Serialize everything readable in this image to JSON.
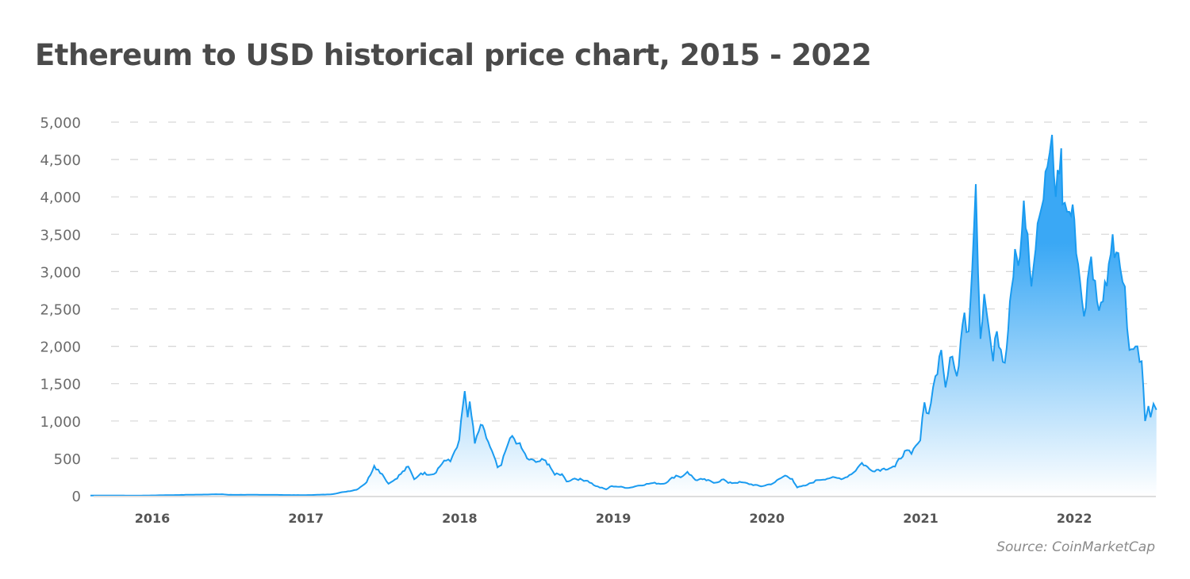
{
  "chart_data": {
    "type": "area",
    "title": "Ethereum to USD historical price chart, 2015 - 2022",
    "source": "Source: CoinMarketCap",
    "xlabel": "",
    "ylabel": "",
    "ylim": [
      0,
      5000
    ],
    "xlim": [
      "2015-08-07",
      "2022-07-15"
    ],
    "grid": "horizontal dashed",
    "colors": {
      "line": "#1a9bf0",
      "fill_top": "#3aa8f5",
      "fill_bottom": "#ffffff"
    },
    "y_ticks": [
      "0",
      "500",
      "1,000",
      "1,500",
      "2,000",
      "2,500",
      "3,000",
      "3,500",
      "4,000",
      "4,500",
      "5,000"
    ],
    "x_ticks": [
      "2016",
      "2017",
      "2018",
      "2019",
      "2020",
      "2021",
      "2022"
    ],
    "series": [
      {
        "points": [
          [
            "2015-08-07",
            3
          ],
          [
            "2015-12-01",
            1
          ],
          [
            "2016-03-01",
            10
          ],
          [
            "2016-06-15",
            20
          ],
          [
            "2016-07-01",
            12
          ],
          [
            "2016-10-01",
            12
          ],
          [
            "2017-01-01",
            8
          ],
          [
            "2017-03-01",
            18
          ],
          [
            "2017-04-01",
            50
          ],
          [
            "2017-05-01",
            80
          ],
          [
            "2017-05-25",
            180
          ],
          [
            "2017-06-12",
            400
          ],
          [
            "2017-07-01",
            290
          ],
          [
            "2017-07-16",
            160
          ],
          [
            "2017-08-01",
            220
          ],
          [
            "2017-09-01",
            390
          ],
          [
            "2017-09-15",
            220
          ],
          [
            "2017-10-01",
            300
          ],
          [
            "2017-11-01",
            290
          ],
          [
            "2017-11-25",
            470
          ],
          [
            "2017-12-10",
            460
          ],
          [
            "2017-12-31",
            750
          ],
          [
            "2018-01-13",
            1400
          ],
          [
            "2018-01-20",
            1050
          ],
          [
            "2018-01-25",
            1260
          ],
          [
            "2018-02-06",
            700
          ],
          [
            "2018-02-20",
            950
          ],
          [
            "2018-03-10",
            720
          ],
          [
            "2018-04-01",
            380
          ],
          [
            "2018-04-10",
            410
          ],
          [
            "2018-04-25",
            680
          ],
          [
            "2018-05-06",
            800
          ],
          [
            "2018-05-20",
            700
          ],
          [
            "2018-06-01",
            600
          ],
          [
            "2018-06-10",
            500
          ],
          [
            "2018-07-01",
            450
          ],
          [
            "2018-07-20",
            480
          ],
          [
            "2018-08-01",
            420
          ],
          [
            "2018-08-15",
            280
          ],
          [
            "2018-09-01",
            290
          ],
          [
            "2018-09-12",
            190
          ],
          [
            "2018-10-01",
            230
          ],
          [
            "2018-11-01",
            200
          ],
          [
            "2018-11-20",
            130
          ],
          [
            "2018-12-15",
            85
          ],
          [
            "2018-12-28",
            130
          ],
          [
            "2019-01-15",
            120
          ],
          [
            "2019-02-07",
            105
          ],
          [
            "2019-03-01",
            135
          ],
          [
            "2019-04-05",
            170
          ],
          [
            "2019-05-01",
            160
          ],
          [
            "2019-05-30",
            270
          ],
          [
            "2019-06-10",
            245
          ],
          [
            "2019-06-26",
            320
          ],
          [
            "2019-07-15",
            210
          ],
          [
            "2019-08-01",
            220
          ],
          [
            "2019-09-01",
            175
          ],
          [
            "2019-09-20",
            220
          ],
          [
            "2019-10-01",
            170
          ],
          [
            "2019-11-01",
            180
          ],
          [
            "2019-12-18",
            125
          ],
          [
            "2020-01-15",
            165
          ],
          [
            "2020-02-13",
            270
          ],
          [
            "2020-03-01",
            225
          ],
          [
            "2020-03-13",
            110
          ],
          [
            "2020-04-01",
            135
          ],
          [
            "2020-05-01",
            210
          ],
          [
            "2020-06-01",
            240
          ],
          [
            "2020-07-01",
            230
          ],
          [
            "2020-07-25",
            310
          ],
          [
            "2020-08-14",
            440
          ],
          [
            "2020-09-05",
            340
          ],
          [
            "2020-10-01",
            355
          ],
          [
            "2020-11-01",
            390
          ],
          [
            "2020-11-24",
            600
          ],
          [
            "2020-12-10",
            560
          ],
          [
            "2020-12-31",
            740
          ],
          [
            "2021-01-10",
            1250
          ],
          [
            "2021-01-20",
            1100
          ],
          [
            "2021-02-05",
            1600
          ],
          [
            "2021-02-19",
            1950
          ],
          [
            "2021-03-01",
            1450
          ],
          [
            "2021-03-12",
            1850
          ],
          [
            "2021-03-28",
            1600
          ],
          [
            "2021-04-15",
            2450
          ],
          [
            "2021-04-25",
            2200
          ],
          [
            "2021-05-12",
            4170
          ],
          [
            "2021-05-23",
            2100
          ],
          [
            "2021-06-01",
            2700
          ],
          [
            "2021-06-22",
            1800
          ],
          [
            "2021-07-01",
            2200
          ],
          [
            "2021-07-20",
            1780
          ],
          [
            "2021-08-01",
            2600
          ],
          [
            "2021-08-13",
            3300
          ],
          [
            "2021-08-25",
            3200
          ],
          [
            "2021-09-03",
            3950
          ],
          [
            "2021-09-21",
            2800
          ],
          [
            "2021-10-01",
            3300
          ],
          [
            "2021-10-15",
            3850
          ],
          [
            "2021-10-29",
            4400
          ],
          [
            "2021-11-09",
            4830
          ],
          [
            "2021-11-18",
            4000
          ],
          [
            "2021-12-01",
            4650
          ],
          [
            "2021-12-04",
            3900
          ],
          [
            "2021-12-20",
            3800
          ],
          [
            "2022-01-01",
            3700
          ],
          [
            "2022-01-10",
            3100
          ],
          [
            "2022-01-24",
            2400
          ],
          [
            "2022-02-10",
            3200
          ],
          [
            "2022-02-24",
            2600
          ],
          [
            "2022-03-10",
            2600
          ],
          [
            "2022-04-02",
            3500
          ],
          [
            "2022-04-20",
            3050
          ],
          [
            "2022-05-01",
            2800
          ],
          [
            "2022-05-12",
            1950
          ],
          [
            "2022-05-31",
            2000
          ],
          [
            "2022-06-10",
            1800
          ],
          [
            "2022-06-18",
            1000
          ],
          [
            "2022-06-26",
            1200
          ],
          [
            "2022-07-01",
            1050
          ],
          [
            "2022-07-08",
            1230
          ],
          [
            "2022-07-15",
            1150
          ]
        ]
      }
    ]
  }
}
